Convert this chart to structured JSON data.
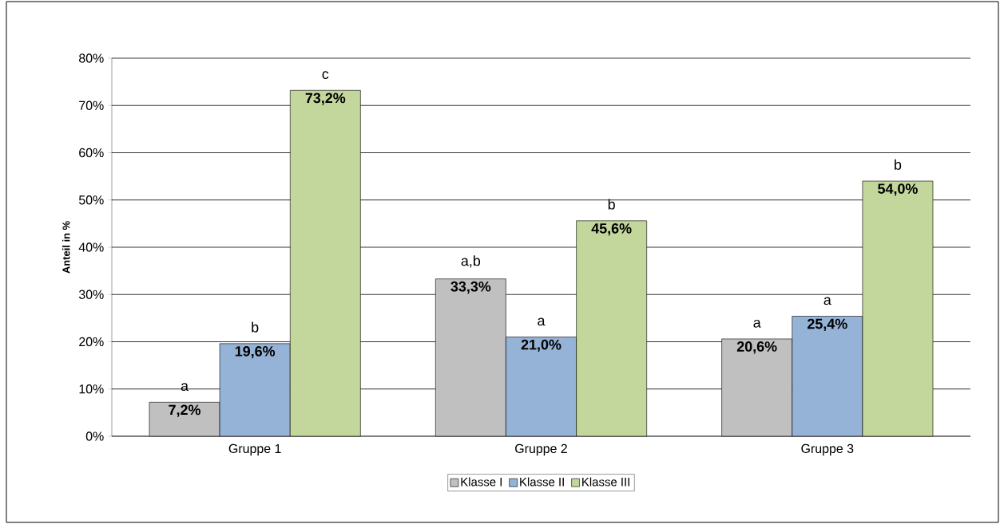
{
  "chart_data": {
    "type": "bar",
    "ylabel": "Anteil in %",
    "categories": [
      "Gruppe 1",
      "Gruppe 2",
      "Gruppe 3"
    ],
    "series": [
      {
        "name": "Klasse I",
        "color": "#c0c0c0",
        "values": [
          7.2,
          33.3,
          20.6
        ],
        "value_labels": [
          "7,2%",
          "33,3%",
          "20,6%"
        ]
      },
      {
        "name": "Klasse II",
        "color": "#95b3d7",
        "values": [
          19.6,
          21.0,
          25.4
        ],
        "value_labels": [
          "19,6%",
          "21,0%",
          "25,4%"
        ]
      },
      {
        "name": "Klasse III",
        "color": "#c3d69b",
        "values": [
          73.2,
          45.6,
          54.0
        ],
        "value_labels": [
          "73,2%",
          "45,6%",
          "54,0%"
        ]
      }
    ],
    "ylim": [
      0,
      80
    ],
    "yticks": [
      {
        "value": 0,
        "label": "0%"
      },
      {
        "value": 10,
        "label": "10%"
      },
      {
        "value": 20,
        "label": "20%"
      },
      {
        "value": 30,
        "label": "30%"
      },
      {
        "value": 40,
        "label": "40%"
      },
      {
        "value": 50,
        "label": "50%"
      },
      {
        "value": 60,
        "label": "60%"
      },
      {
        "value": 70,
        "label": "70%"
      },
      {
        "value": 80,
        "label": "80%"
      }
    ],
    "grid": "y",
    "legend": "bottom",
    "annotations": [
      "a",
      "b",
      "c",
      "a,b",
      "a",
      "b",
      "a",
      "a",
      "b"
    ]
  }
}
